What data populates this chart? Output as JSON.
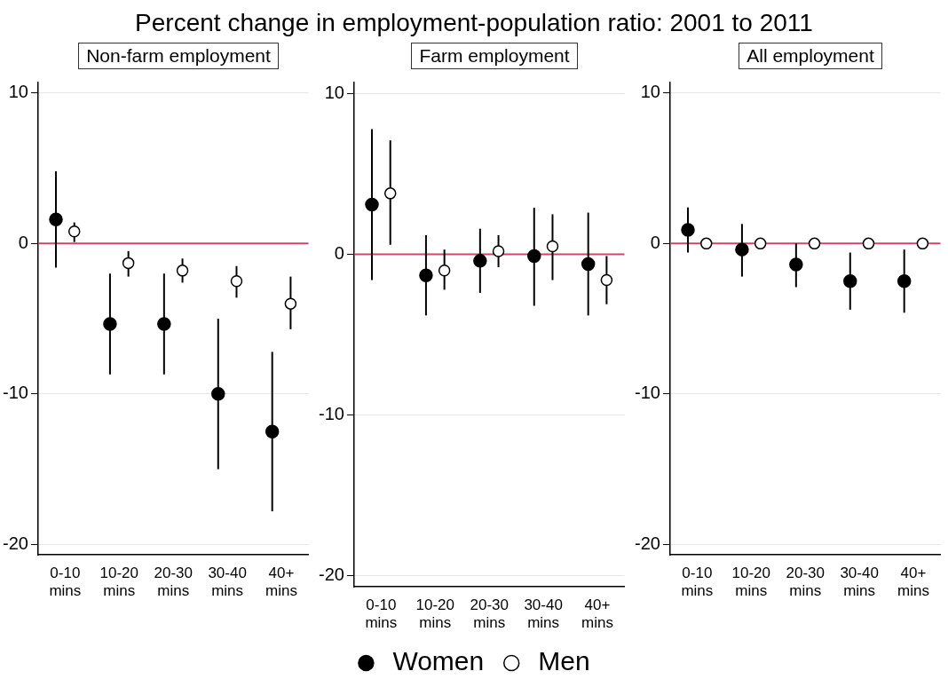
{
  "chart_data": [
    {
      "type": "scatter",
      "title": "Percent change in employment-population ratio: 2001 to 2011",
      "subtitle": "Non-farm employment",
      "categories": [
        "0-10 mins",
        "10-20 mins",
        "20-30 mins",
        "30-40 mins",
        "40+ mins"
      ],
      "ylim": [
        -20.7,
        10.7
      ],
      "yticks": [
        -20,
        -10,
        0,
        10
      ],
      "grid": "y",
      "marker": "circle",
      "legend": false,
      "ref_lines": [
        {
          "axis": "y",
          "value": 0,
          "color": "#d0466a"
        }
      ],
      "series": [
        {
          "color": "#000000",
          "values": [
            1.6,
            -5.35,
            -5.35,
            -10.0,
            -12.5
          ],
          "errors": [
            [
              -1.6,
              4.8
            ],
            [
              -8.7,
              -2.0
            ],
            [
              -8.7,
              -2.0
            ],
            [
              -15.0,
              -5.0
            ],
            [
              -17.8,
              -7.2
            ]
          ]
        },
        {
          "color": "#000000",
          "values": [
            0.8,
            -1.3,
            -1.8,
            -2.5,
            -4.0
          ],
          "errors": [
            [
              0.1,
              1.4
            ],
            [
              -2.2,
              -0.5
            ],
            [
              -2.6,
              -1.0
            ],
            [
              -3.6,
              -1.5
            ],
            [
              -5.7,
              -2.2
            ]
          ]
        }
      ]
    },
    {
      "type": "scatter",
      "subtitle": "Farm employment",
      "categories": [
        "0-10 mins",
        "10-20 mins",
        "20-30 mins",
        "30-40 mins",
        "40+ mins"
      ],
      "ylim": [
        -20.7,
        10.7
      ],
      "yticks": [
        -20,
        -10,
        0,
        10
      ],
      "grid": "y",
      "marker": "circle",
      "legend": "bottom",
      "ref_lines": [
        {
          "axis": "y",
          "value": 0,
          "color": "#d0466a"
        }
      ],
      "series": [
        {
          "name": "Women",
          "color": "#000000",
          "values": [
            3.1,
            -1.3,
            -0.4,
            -0.1,
            -0.6
          ],
          "errors": [
            [
              -1.6,
              7.8
            ],
            [
              -3.8,
              1.2
            ],
            [
              -2.4,
              1.6
            ],
            [
              -3.2,
              2.9
            ],
            [
              -3.8,
              2.6
            ]
          ]
        },
        {
          "name": "Men",
          "color": "#000000",
          "values": [
            3.8,
            -1.0,
            0.2,
            0.5,
            -1.6
          ],
          "errors": [
            [
              0.6,
              7.1
            ],
            [
              -2.2,
              0.3
            ],
            [
              -0.8,
              1.2
            ],
            [
              -1.6,
              2.5
            ],
            [
              -3.1,
              -0.1
            ]
          ]
        }
      ]
    },
    {
      "type": "scatter",
      "subtitle": "All employment",
      "categories": [
        "0-10 mins",
        "10-20 mins",
        "20-30 mins",
        "30-40 mins",
        "40+ mins"
      ],
      "ylim": [
        -20.7,
        10.7
      ],
      "yticks": [
        -20,
        -10,
        0,
        10
      ],
      "grid": "y",
      "marker": "circle",
      "legend": false,
      "ref_lines": [
        {
          "axis": "y",
          "value": 0,
          "color": "#d0466a"
        }
      ],
      "series": [
        {
          "color": "#000000",
          "values": [
            0.9,
            -0.4,
            -1.4,
            -2.5,
            -2.5
          ],
          "errors": [
            [
              -0.6,
              2.4
            ],
            [
              -2.2,
              1.3
            ],
            [
              -2.9,
              0.0
            ],
            [
              -4.4,
              -0.6
            ],
            [
              -4.6,
              -0.4
            ]
          ]
        },
        {
          "color": "#000000",
          "values": [
            0.0,
            0.0,
            0.0,
            0.0,
            0.0
          ]
        }
      ]
    }
  ]
}
